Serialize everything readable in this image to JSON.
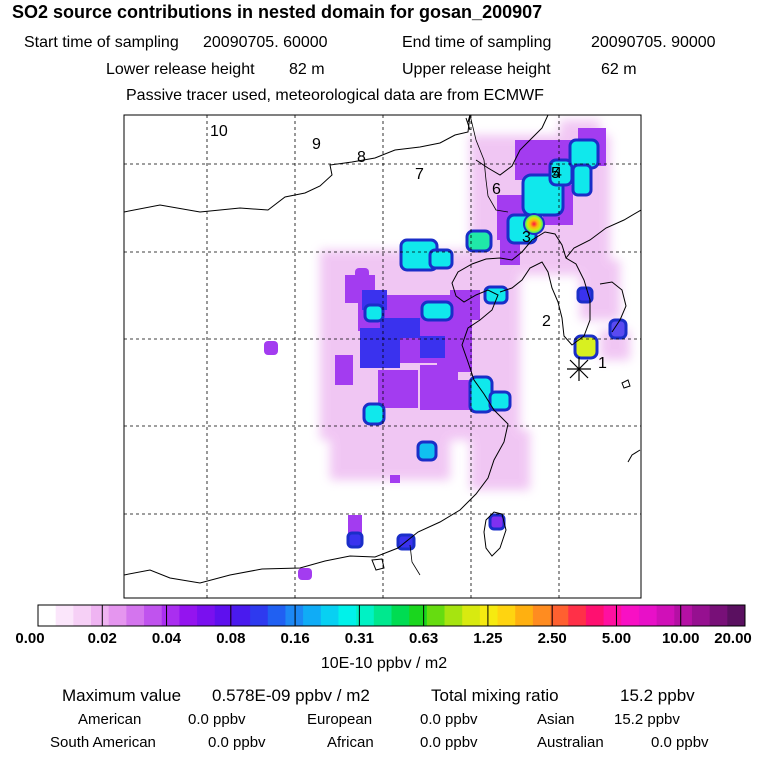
{
  "title": "SO2 source contributions in nested domain for gosan_200907",
  "header": {
    "start_label": "Start time of sampling",
    "start_value": "20090705. 60000",
    "end_label": "End time of sampling",
    "end_value": "20090705. 90000",
    "lower_label": "Lower release height",
    "lower_value": "82 m",
    "upper_label": "Upper release height",
    "upper_value": "62 m",
    "tracer_note": "Passive tracer used, meteorological data are from ECMWF"
  },
  "trajectory_labels": [
    "1",
    "2",
    "3",
    "4",
    "5",
    "6",
    "7",
    "8",
    "9",
    "10"
  ],
  "colorbar": {
    "ticks": [
      "0.00",
      "0.02",
      "0.04",
      "0.08",
      "0.16",
      "0.31",
      "0.63",
      "1.25",
      "2.50",
      "5.00",
      "10.00",
      "20.00"
    ],
    "colors": [
      "#ffffff",
      "#fbe6fb",
      "#f6d0f6",
      "#efb4f2",
      "#e596ef",
      "#d475ee",
      "#c053ee",
      "#aa2ef0",
      "#9414ef",
      "#7a10ef",
      "#5e10ee",
      "#4a1aee",
      "#2e3aef",
      "#2060f2",
      "#1c88f5",
      "#10acf6",
      "#08d0f2",
      "#00f2ea",
      "#00f2c4",
      "#00e88e",
      "#00dc52",
      "#1ad61e",
      "#66dc10",
      "#a6e410",
      "#d8ea10",
      "#f6ea10",
      "#ffd410",
      "#ffb010",
      "#ff8c20",
      "#ff6030",
      "#ff3048",
      "#ff1070",
      "#ff10a0",
      "#f810c4",
      "#e810c8",
      "#d010b8",
      "#b410a4",
      "#961090",
      "#781078",
      "#5a1060"
    ],
    "unit": "10E-10 ppbv / m2"
  },
  "stats": {
    "max_label": "Maximum value",
    "max_value": "0.578E-09 ppbv / m2",
    "total_label": "Total mixing ratio",
    "total_value": "15.2 ppbv"
  },
  "regions": [
    {
      "name": "American",
      "value": "0.0 ppbv"
    },
    {
      "name": "European",
      "value": "0.0 ppbv"
    },
    {
      "name": "Asian",
      "value": "15.2 ppbv"
    },
    {
      "name": "South American",
      "value": "0.0 ppbv"
    },
    {
      "name": "African",
      "value": "0.0 ppbv"
    },
    {
      "name": "Australian",
      "value": "0.0 ppbv"
    }
  ]
}
